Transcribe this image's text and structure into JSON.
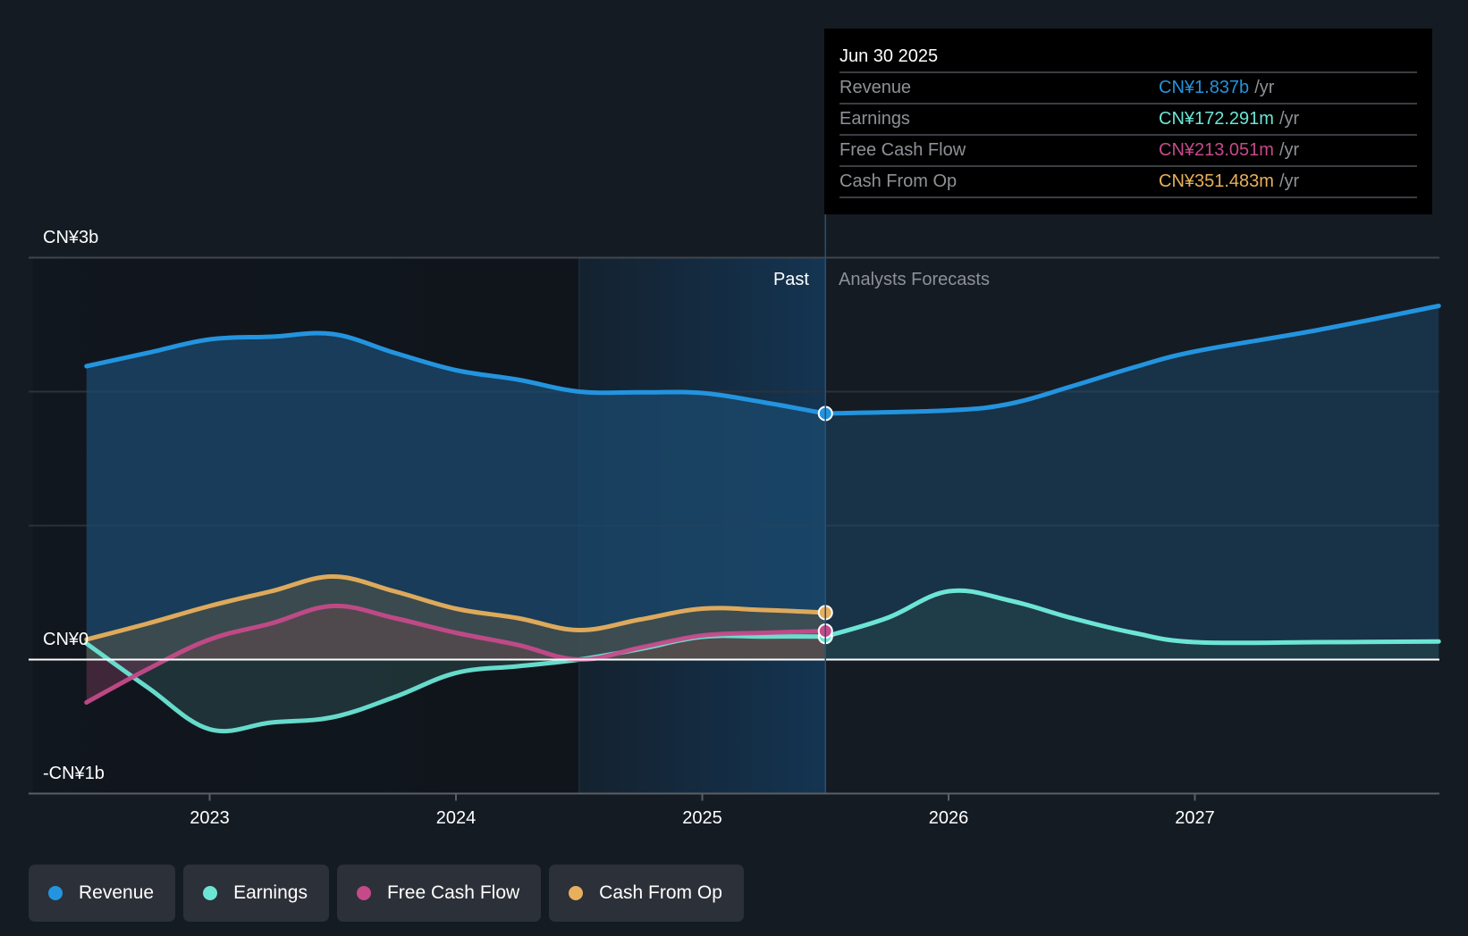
{
  "tooltip": {
    "date": "Jun 30 2025",
    "unit": "/yr",
    "rows": [
      {
        "name": "Revenue",
        "value": "CN¥1.837b",
        "color": "#2394df"
      },
      {
        "name": "Earnings",
        "value": "CN¥172.291m",
        "color": "#6ce5d5"
      },
      {
        "name": "Free Cash Flow",
        "value": "CN¥213.051m",
        "color": "#c54a8a"
      },
      {
        "name": "Cash From Op",
        "value": "CN¥351.483m",
        "color": "#e8af5c"
      }
    ]
  },
  "labels": {
    "past": "Past",
    "forecast": "Analysts Forecasts"
  },
  "legend": [
    {
      "label": "Revenue",
      "color": "#2394df"
    },
    {
      "label": "Earnings",
      "color": "#6ce5d5"
    },
    {
      "label": "Free Cash Flow",
      "color": "#c54a8a"
    },
    {
      "label": "Cash From Op",
      "color": "#e8af5c"
    }
  ],
  "chart_data": {
    "type": "area",
    "title": "",
    "xlabel": "",
    "ylabel": "",
    "x_unit": "year",
    "xlim": [
      2022.5,
      2028.0
    ],
    "ylim": [
      -1.0,
      3.0
    ],
    "y_unit": "CN¥ billions",
    "y_ticks": [
      {
        "value": 3,
        "label": "CN¥3b"
      },
      {
        "value": 0,
        "label": "CN¥0"
      },
      {
        "value": -1,
        "label": "-CN¥1b"
      }
    ],
    "gridlines": [
      3,
      2,
      1,
      0,
      -1
    ],
    "x_ticks": [
      {
        "value": 2023,
        "label": "2023"
      },
      {
        "value": 2024,
        "label": "2024"
      },
      {
        "value": 2025,
        "label": "2025"
      },
      {
        "value": 2026,
        "label": "2026"
      },
      {
        "value": 2027,
        "label": "2027"
      }
    ],
    "past_region_start": 2024.5,
    "forecast_start": 2025.5,
    "highlight_x": 2025.5,
    "legend_position": "bottom-left",
    "series": [
      {
        "name": "Revenue",
        "color": "#2394df",
        "points": [
          [
            2022.5,
            2.19
          ],
          [
            2022.75,
            2.29
          ],
          [
            2023.0,
            2.39
          ],
          [
            2023.25,
            2.41
          ],
          [
            2023.5,
            2.43
          ],
          [
            2023.75,
            2.29
          ],
          [
            2024.0,
            2.16
          ],
          [
            2024.25,
            2.09
          ],
          [
            2024.5,
            2.0
          ],
          [
            2024.75,
            1.995
          ],
          [
            2025.0,
            1.99
          ],
          [
            2025.25,
            1.92
          ],
          [
            2025.5,
            1.837
          ]
        ],
        "forecast": [
          [
            2025.5,
            1.837
          ],
          [
            2026.0,
            1.86
          ],
          [
            2026.25,
            1.91
          ],
          [
            2026.5,
            2.04
          ],
          [
            2026.75,
            2.18
          ],
          [
            2027.0,
            2.3
          ],
          [
            2027.5,
            2.46
          ],
          [
            2027.99,
            2.64
          ]
        ]
      },
      {
        "name": "Earnings",
        "color": "#6ce5d5",
        "points": [
          [
            2022.5,
            0.12
          ],
          [
            2022.75,
            -0.21
          ],
          [
            2023.0,
            -0.52
          ],
          [
            2023.25,
            -0.47
          ],
          [
            2023.5,
            -0.43
          ],
          [
            2023.75,
            -0.28
          ],
          [
            2024.0,
            -0.1
          ],
          [
            2024.25,
            -0.05
          ],
          [
            2024.5,
            0.0
          ],
          [
            2024.75,
            0.08
          ],
          [
            2025.0,
            0.17
          ],
          [
            2025.25,
            0.172
          ],
          [
            2025.5,
            0.172
          ]
        ],
        "forecast": [
          [
            2025.5,
            0.172
          ],
          [
            2025.75,
            0.31
          ],
          [
            2026.0,
            0.51
          ],
          [
            2026.25,
            0.44
          ],
          [
            2026.5,
            0.31
          ],
          [
            2026.75,
            0.2
          ],
          [
            2027.0,
            0.13
          ],
          [
            2027.5,
            0.13
          ],
          [
            2027.99,
            0.135
          ]
        ]
      },
      {
        "name": "Free Cash Flow",
        "color": "#c54a8a",
        "points": [
          [
            2022.5,
            -0.32
          ],
          [
            2022.75,
            -0.07
          ],
          [
            2023.0,
            0.15
          ],
          [
            2023.25,
            0.27
          ],
          [
            2023.5,
            0.4
          ],
          [
            2023.75,
            0.31
          ],
          [
            2024.0,
            0.2
          ],
          [
            2024.25,
            0.11
          ],
          [
            2024.5,
            0.0
          ],
          [
            2024.75,
            0.09
          ],
          [
            2025.0,
            0.18
          ],
          [
            2025.25,
            0.2
          ],
          [
            2025.5,
            0.213
          ]
        ],
        "forecast": []
      },
      {
        "name": "Cash From Op",
        "color": "#e8af5c",
        "points": [
          [
            2022.5,
            0.15
          ],
          [
            2022.75,
            0.27
          ],
          [
            2023.0,
            0.4
          ],
          [
            2023.25,
            0.51
          ],
          [
            2023.5,
            0.62
          ],
          [
            2023.75,
            0.51
          ],
          [
            2024.0,
            0.38
          ],
          [
            2024.25,
            0.31
          ],
          [
            2024.5,
            0.22
          ],
          [
            2024.75,
            0.3
          ],
          [
            2025.0,
            0.38
          ],
          [
            2025.25,
            0.37
          ],
          [
            2025.5,
            0.351
          ]
        ],
        "forecast": []
      }
    ]
  }
}
